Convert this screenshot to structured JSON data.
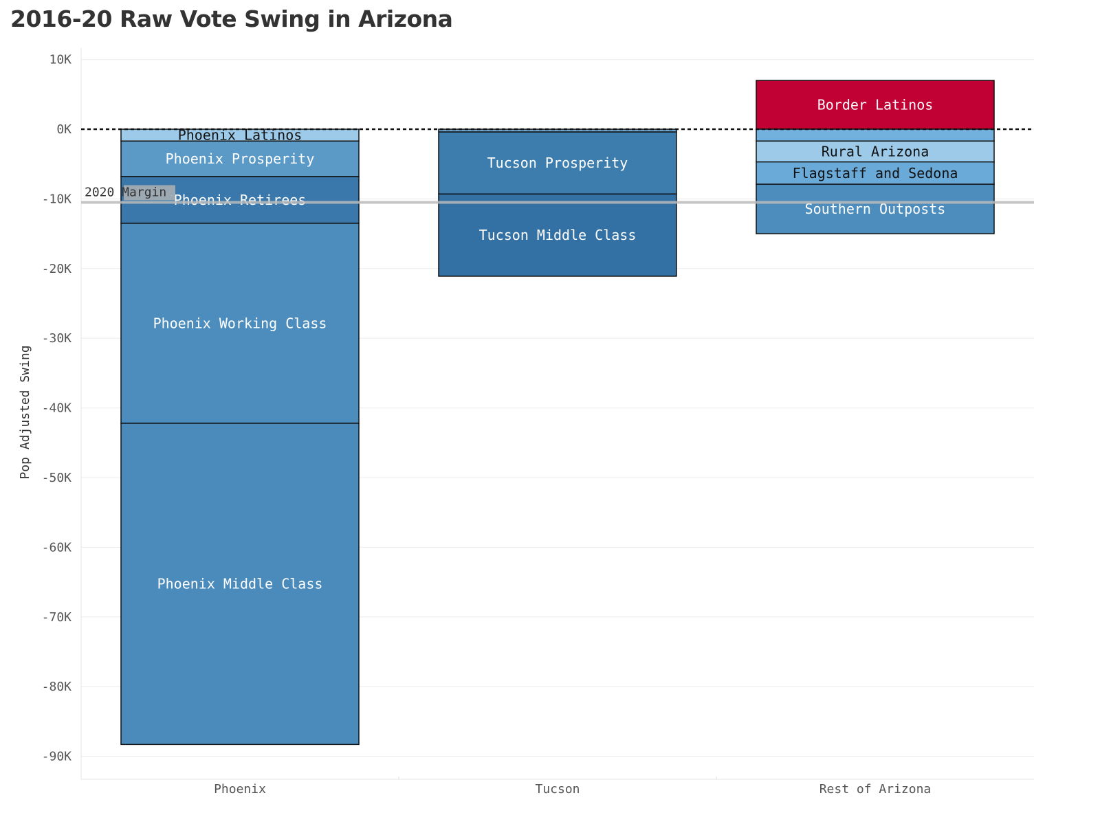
{
  "chart_data": {
    "type": "bar",
    "stacked": true,
    "title": "2016-20 Raw Vote Swing in Arizona",
    "ylabel": "Pop Adjusted Swing",
    "xlabel": "",
    "ylim": [
      -93000,
      10000
    ],
    "yticks": [
      10000,
      0,
      -10000,
      -20000,
      -30000,
      -40000,
      -50000,
      -60000,
      -70000,
      -80000,
      -90000
    ],
    "ytick_labels": [
      "10K",
      "0K",
      "-10K",
      "-20K",
      "-30K",
      "-40K",
      "-50K",
      "-60K",
      "-70K",
      "-80K",
      "-90K"
    ],
    "categories": [
      "Phoenix",
      "Tucson",
      "Rest of Arizona"
    ],
    "grid": true,
    "zero_line": {
      "value": 0,
      "style": "dotted"
    },
    "reference_line": {
      "label": "2020 Margin",
      "value": -10500,
      "color": "#bbbbbb"
    },
    "groups": [
      {
        "category": "Phoenix",
        "segments": [
          {
            "name": "Phoenix Latinos",
            "value": -1700,
            "color": "#9ccae8",
            "text_color": "#111111"
          },
          {
            "name": "Phoenix Prosperity",
            "value": -5100,
            "color": "#5b99c6",
            "text_color": "#ffffff"
          },
          {
            "name": "Phoenix Retirees",
            "value": -6700,
            "color": "#3a78ac",
            "text_color": "#ffffff"
          },
          {
            "name": "Phoenix Working Class",
            "value": -28700,
            "color": "#4d8dbd",
            "text_color": "#ffffff"
          },
          {
            "name": "Phoenix Middle Class",
            "value": -46100,
            "color": "#4a8bbb",
            "text_color": "#ffffff"
          }
        ]
      },
      {
        "category": "Tucson",
        "segments": [
          {
            "name": "",
            "value": -400,
            "color": "#6aa7d4",
            "text_color": "#111111"
          },
          {
            "name": "Tucson Prosperity",
            "value": -8900,
            "color": "#3d7dae",
            "text_color": "#ffffff"
          },
          {
            "name": "Tucson Middle Class",
            "value": -11800,
            "color": "#3370a3",
            "text_color": "#ffffff"
          }
        ]
      },
      {
        "category": "Rest of Arizona",
        "segments": [
          {
            "name": "Border Latinos",
            "value": 7000,
            "color": "#c10034",
            "text_color": "#ffffff"
          },
          {
            "name": "",
            "value": -1700,
            "color": "#72b1dd",
            "text_color": "#111111"
          },
          {
            "name": "Rural Arizona",
            "value": -3000,
            "color": "#9ccae8",
            "text_color": "#111111"
          },
          {
            "name": "Flagstaff and Sedona",
            "value": -3200,
            "color": "#6aaad8",
            "text_color": "#111111"
          },
          {
            "name": "Southern Outposts",
            "value": -7100,
            "color": "#4d8dbd",
            "text_color": "#ffffff"
          }
        ]
      }
    ]
  }
}
